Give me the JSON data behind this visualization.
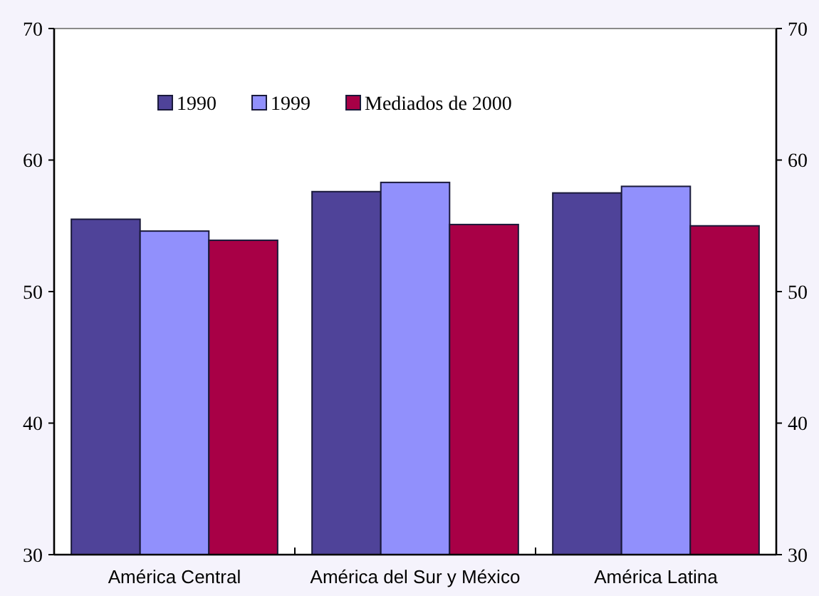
{
  "chart_data": {
    "type": "bar",
    "categories": [
      "América Central",
      "América del Sur y México",
      "América Latina"
    ],
    "series": [
      {
        "name": "1990",
        "color": "#4f4399",
        "values": [
          55.5,
          57.6,
          57.5
        ]
      },
      {
        "name": "1999",
        "color": "#9190fc",
        "values": [
          54.6,
          58.3,
          58.0
        ]
      },
      {
        "name": "Mediados de 2000",
        "color": "#a80046",
        "values": [
          53.9,
          55.1,
          55.0
        ]
      }
    ],
    "ylim": [
      30,
      70
    ],
    "yticks": [
      30,
      40,
      50,
      60,
      70
    ],
    "y2lim": [
      30,
      70
    ],
    "y2ticks": [
      30,
      40,
      50,
      60,
      70
    ],
    "legend": "top"
  }
}
